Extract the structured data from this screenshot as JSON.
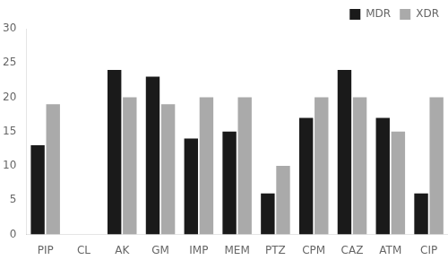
{
  "chart_data": {
    "type": "bar",
    "categories": [
      "PIP",
      "CL",
      "AK",
      "GM",
      "IMP",
      "MEM",
      "PTZ",
      "CPM",
      "CAZ",
      "ATM",
      "CIP"
    ],
    "series": [
      {
        "name": "MDR",
        "color": "#1a1a1a",
        "values": [
          13,
          0,
          24,
          23,
          14,
          15,
          6,
          17,
          24,
          17,
          6
        ]
      },
      {
        "name": "XDR",
        "color": "#aaaaaa",
        "values": [
          19,
          0,
          20,
          19,
          20,
          20,
          10,
          20,
          20,
          15,
          20
        ]
      }
    ],
    "ylim": [
      0,
      30
    ],
    "yticks": [
      0,
      5,
      10,
      15,
      20,
      25,
      30
    ],
    "grid": false,
    "legend": "upper right"
  }
}
